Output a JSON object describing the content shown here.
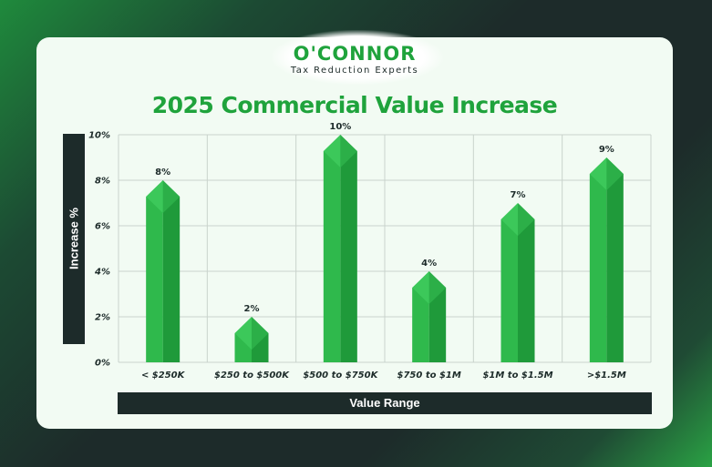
{
  "brand": {
    "name": "O'CONNOR",
    "tagline": "Tax Reduction Experts"
  },
  "colors": {
    "accent": "#1fa33c",
    "dark": "#1d2b2a",
    "bar_light": "#2fb94c",
    "bar_dark": "#1f9a3a",
    "bar_cap": "#3cc85a"
  },
  "chart_data": {
    "type": "bar",
    "title": "2025 Commercial Value Increase",
    "xlabel": "Value Range",
    "ylabel": "Increase %",
    "categories": [
      "< $250K",
      "$250 to $500K",
      "$500 to $750K",
      "$750 to $1M",
      "$1M to $1.5M",
      ">$1.5M"
    ],
    "values": [
      8,
      2,
      10,
      4,
      7,
      9
    ],
    "data_labels": [
      "8%",
      "2%",
      "10%",
      "4%",
      "7%",
      "9%"
    ],
    "ylim": [
      0,
      10
    ],
    "yticks": [
      0,
      2,
      4,
      6,
      8,
      10
    ],
    "ytick_labels": [
      "0%",
      "2%",
      "4%",
      "6%",
      "8%",
      "10%"
    ],
    "grid": true,
    "legend": "none"
  }
}
